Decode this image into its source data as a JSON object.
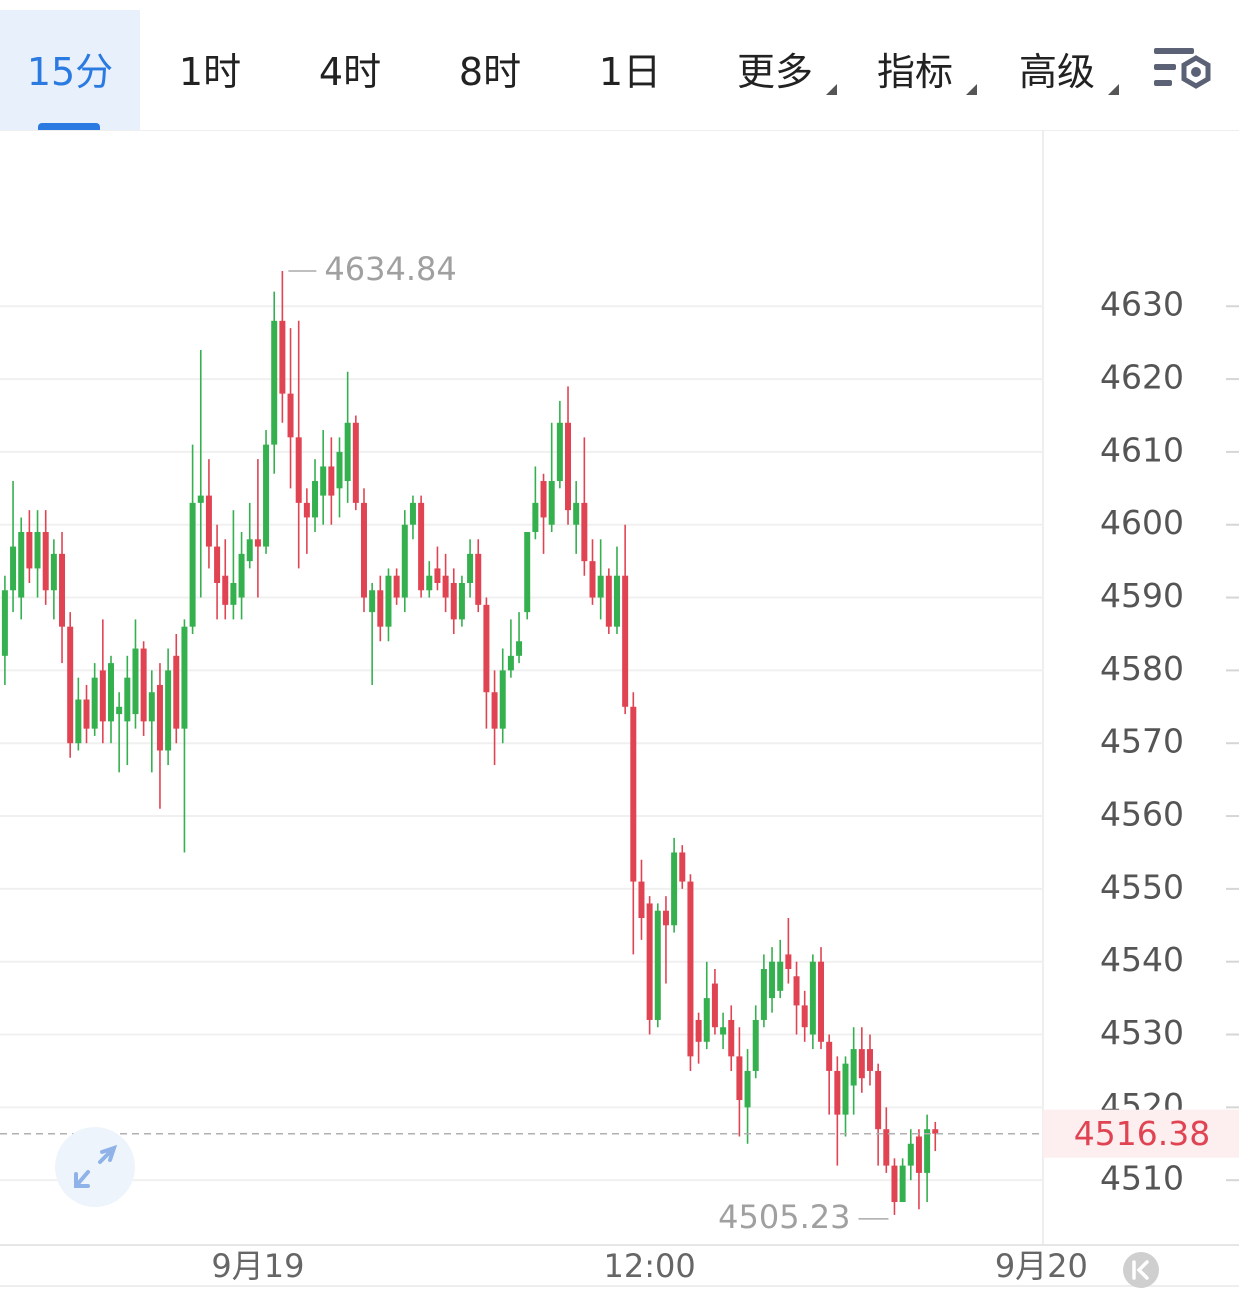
{
  "toolbar": {
    "tabs": [
      "15分",
      "1时",
      "4时",
      "8时",
      "1日",
      "更多",
      "指标",
      "高级"
    ],
    "active": 0
  },
  "chart_data": {
    "type": "candlestick",
    "up_color": "#35b04f",
    "down_color": "#e04453",
    "open": [
      4582,
      4591,
      4590,
      4599,
      4594,
      4599,
      4591,
      4596,
      4586,
      4570,
      4576,
      4572,
      4580,
      4573,
      4574,
      4573,
      4574,
      4583,
      4573,
      4578,
      4569,
      4582,
      4572,
      4586,
      4603,
      4604,
      4597,
      4593,
      4589,
      4590,
      4595,
      4598,
      4597,
      4611,
      4628,
      4618,
      4612,
      4603,
      4601,
      4604,
      4608,
      4605,
      4606,
      4614,
      4603,
      4588,
      4591,
      4586,
      4593,
      4590,
      4600,
      4603,
      4591,
      4594,
      4593,
      4592,
      4587,
      4592,
      4596,
      4589,
      4577,
      4572,
      4580,
      4582,
      4588,
      4599,
      4606,
      4600,
      4606,
      4614,
      4600,
      4603,
      4595,
      4590,
      4593,
      4586,
      4593,
      4575,
      4551,
      4548,
      4532,
      4547,
      4545,
      4555,
      4551,
      4532,
      4529,
      4537,
      4530,
      4532,
      4527,
      4520,
      4525,
      4532,
      4535,
      4536,
      4541,
      4538,
      4534,
      4530,
      4540,
      4529,
      4525,
      4519,
      4523,
      4528,
      4528,
      4525,
      4517,
      4512,
      4507,
      4512,
      4516,
      4511,
      4517
    ],
    "high": [
      4593,
      4606,
      4601,
      4602,
      4602,
      4602,
      4598,
      4599,
      4588,
      4579,
      4578,
      4581,
      4587,
      4582,
      4577,
      4582,
      4587,
      4584,
      4580,
      4581,
      4583,
      4585,
      4587,
      4611,
      4624,
      4609,
      4600,
      4598,
      4602,
      4599,
      4603,
      4609,
      4613,
      4632,
      4634.84,
      4627,
      4628,
      4605,
      4609,
      4613,
      4612,
      4612,
      4621,
      4615,
      4605,
      4592,
      4593,
      4594,
      4594,
      4602,
      4604,
      4604,
      4595,
      4597,
      4596,
      4594,
      4593,
      4598,
      4598,
      4590,
      4580,
      4583,
      4587,
      4588,
      4599,
      4608,
      4607,
      4614,
      4617,
      4619,
      4606,
      4612,
      4598,
      4598,
      4594,
      4597,
      4600,
      4577,
      4554,
      4549,
      4548,
      4549,
      4557,
      4556,
      4552,
      4533,
      4540,
      4539,
      4533,
      4534,
      4531,
      4528,
      4534,
      4541,
      4542,
      4543,
      4546,
      4540,
      4536,
      4541,
      4542,
      4530,
      4527,
      4527,
      4531,
      4531,
      4530,
      4526,
      4520,
      4513,
      4513,
      4517,
      4517,
      4519,
      4518
    ],
    "low": [
      4578,
      4588,
      4587,
      4592,
      4590,
      4589,
      4587,
      4581,
      4568,
      4569,
      4570,
      4571,
      4570,
      4570,
      4566,
      4567,
      4572,
      4571,
      4566,
      4561,
      4567,
      4570,
      4555,
      4585,
      4590,
      4594,
      4587,
      4587,
      4587,
      4587,
      4594,
      4590,
      4596,
      4607,
      4614,
      4605,
      4594,
      4596,
      4599,
      4600,
      4600,
      4601,
      4603,
      4602,
      4588,
      4578,
      4584,
      4584,
      4589,
      4588,
      4598,
      4590,
      4590,
      4591,
      4588,
      4585,
      4586,
      4590,
      4588,
      4572,
      4567,
      4570,
      4579,
      4581,
      4587,
      4598,
      4596,
      4599,
      4605,
      4600,
      4596,
      4593,
      4589,
      4587,
      4585,
      4585,
      4574,
      4541,
      4543,
      4530,
      4531,
      4537,
      4544,
      4550,
      4525,
      4526,
      4528,
      4530,
      4528,
      4525,
      4516,
      4515,
      4524,
      4531,
      4533,
      4535,
      4537,
      4530,
      4529,
      4528,
      4528,
      4519,
      4512,
      4516,
      4519,
      4522,
      4523,
      4512,
      4511,
      4505.23,
      4507,
      4510,
      4506,
      4507,
      4514
    ],
    "close": [
      4591,
      4597,
      4599,
      4594,
      4599,
      4591,
      4596,
      4586,
      4570,
      4576,
      4572,
      4579,
      4573,
      4581,
      4575,
      4579,
      4583,
      4573,
      4577,
      4569,
      4580,
      4572,
      4586,
      4603,
      4604,
      4597,
      4592,
      4589,
      4592,
      4596,
      4598,
      4597,
      4611,
      4628,
      4618,
      4612,
      4603,
      4601,
      4606,
      4608,
      4604,
      4610,
      4614,
      4603,
      4590,
      4591,
      4586,
      4593,
      4590,
      4600,
      4603,
      4591,
      4593,
      4592,
      4590,
      4587,
      4592,
      4596,
      4589,
      4577,
      4572,
      4580,
      4582,
      4584,
      4599,
      4603,
      4601,
      4606,
      4614,
      4602,
      4603,
      4595,
      4590,
      4593,
      4586,
      4593,
      4575,
      4551,
      4546,
      4532,
      4547,
      4545,
      4555,
      4551,
      4527,
      4529,
      4535,
      4531,
      4531,
      4527,
      4521,
      4525,
      4532,
      4539,
      4540,
      4540,
      4539,
      4534,
      4531,
      4540,
      4529,
      4525,
      4519,
      4526,
      4528,
      4524,
      4525,
      4517,
      4512,
      4507,
      4512,
      4515,
      4511,
      4517,
      4516.38
    ],
    "high_index": 34,
    "low_index": 109,
    "ylim": [
      4501.1,
      4654.2
    ],
    "yticks": [
      4510,
      4520,
      4530,
      4540,
      4550,
      4560,
      4570,
      4580,
      4590,
      4600,
      4610,
      4620,
      4630
    ],
    "xlim": [
      -0.6,
      127.2
    ],
    "xticks": [
      {
        "value": 31,
        "label": "9月19"
      },
      {
        "value": 79,
        "label": "12:00"
      },
      {
        "value": 127,
        "label": "9月20"
      }
    ],
    "grid": true
  }
}
